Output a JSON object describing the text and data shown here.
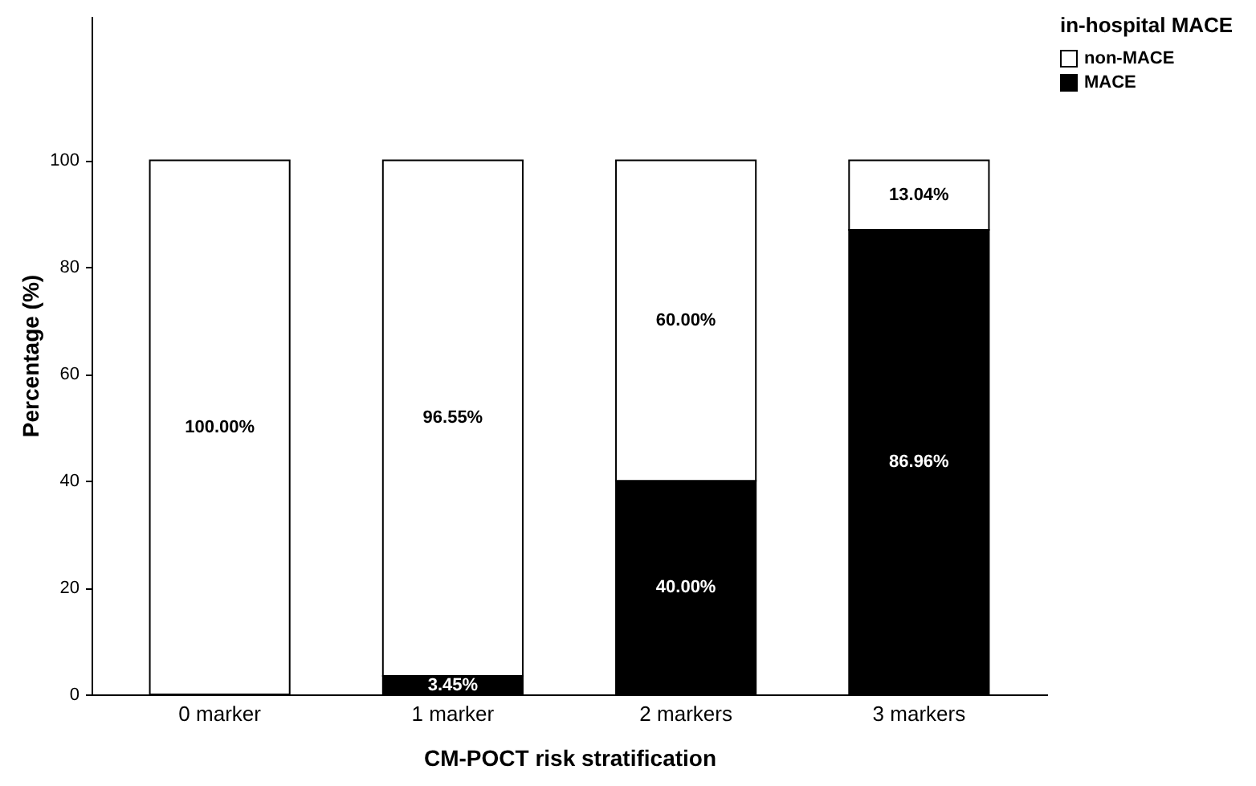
{
  "chart_data": {
    "type": "bar",
    "stacked": true,
    "xlabel": "CM-POCT risk stratification",
    "ylabel": "Percentage (%)",
    "legend_title": "in-hospital MACE",
    "categories": [
      "0 marker",
      "1 marker",
      "2 markers",
      "3 markers"
    ],
    "series": [
      {
        "name": "MACE",
        "color": "#000000",
        "values": [
          0,
          3.45,
          40.0,
          86.96
        ],
        "value_labels": [
          null,
          "3.45%",
          "40.00%",
          "86.96%"
        ]
      },
      {
        "name": "non-MACE",
        "color": "#ffffff",
        "values": [
          100,
          96.55,
          60.0,
          13.04
        ],
        "value_labels": [
          "100.00%",
          "96.55%",
          "60.00%",
          "13.04%"
        ]
      }
    ],
    "ylim": [
      0,
      127
    ],
    "yticks": [
      0,
      20,
      40,
      60,
      80,
      100
    ],
    "grid": false,
    "legend": "top right"
  }
}
